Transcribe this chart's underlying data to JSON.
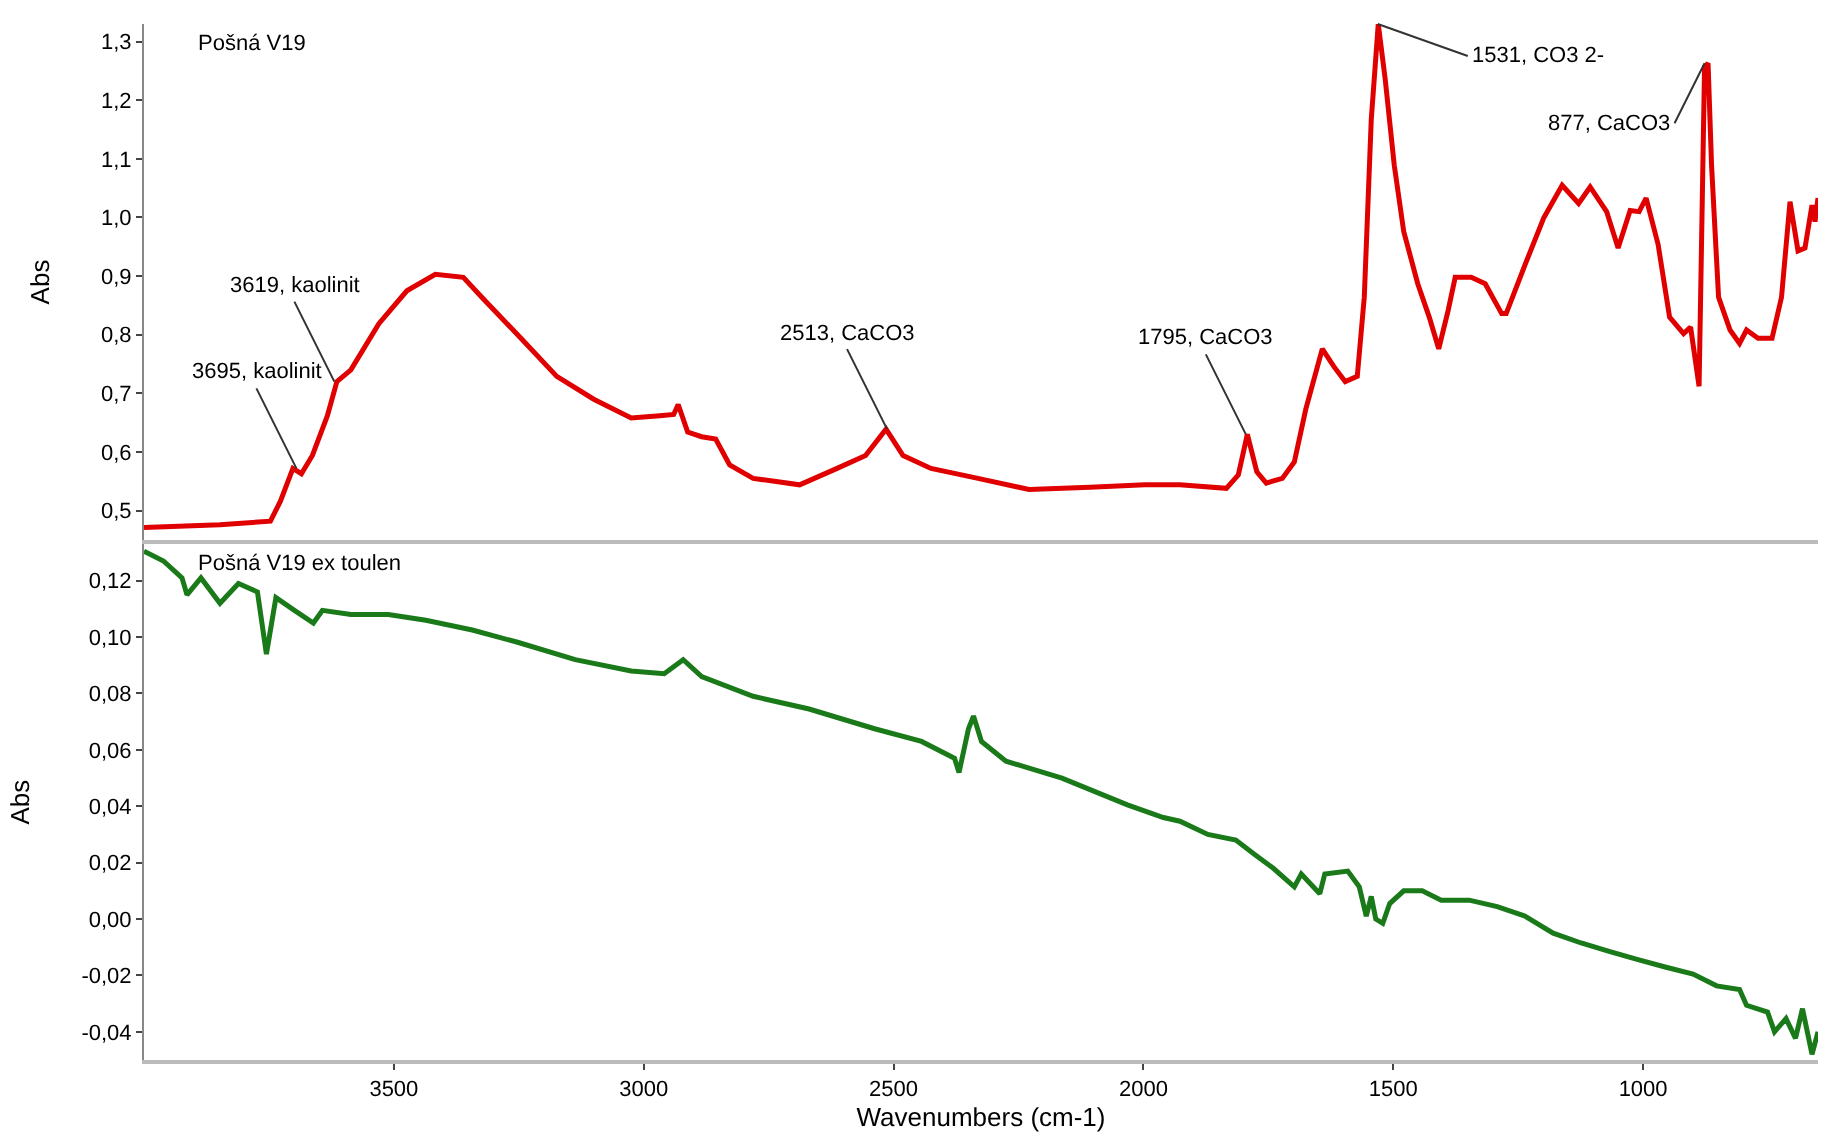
{
  "chart_data": [
    {
      "type": "line",
      "title": "Pošná V19",
      "ylabel": "Abs",
      "xlim": [
        4000,
        650
      ],
      "xticks": [
        3500,
        3000,
        2500,
        2000,
        1500,
        1000
      ],
      "tick_labels": "y",
      "ylim": [
        0.45,
        1.33
      ],
      "yticks": [
        {
          "value": 0.5,
          "label": "0,5"
        },
        {
          "value": 0.6,
          "label": "0,6"
        },
        {
          "value": 0.7,
          "label": "0,7"
        },
        {
          "value": 0.8,
          "label": "0,8"
        },
        {
          "value": 0.9,
          "label": "0,9"
        },
        {
          "value": 1.0,
          "label": "1,0"
        },
        {
          "value": 1.1,
          "label": "1,1"
        },
        {
          "value": 1.2,
          "label": "1,2"
        },
        {
          "value": 1.3,
          "label": "1,3"
        }
      ],
      "series": [
        {
          "color": "#e00000",
          "x": [
            4000,
            3848,
            3747,
            3727,
            3702,
            3685,
            3663,
            3633,
            3614,
            3586,
            3530,
            3474,
            3417,
            3361,
            3324,
            3249,
            3174,
            3100,
            3025,
            2968,
            2940,
            2931,
            2912,
            2884,
            2856,
            2828,
            2781,
            2688,
            2613,
            2556,
            2515,
            2481,
            2425,
            2331,
            2229,
            2107,
            1997,
            1927,
            1834,
            1810,
            1792,
            1773,
            1754,
            1722,
            1698,
            1675,
            1642,
            1619,
            1596,
            1572,
            1558,
            1544,
            1530,
            1516,
            1498,
            1479,
            1451,
            1428,
            1409,
            1390,
            1376,
            1344,
            1316,
            1283,
            1274,
            1236,
            1199,
            1162,
            1129,
            1106,
            1073,
            1050,
            1026,
            1008,
            994,
            970,
            947,
            919,
            905,
            888,
            877,
            870,
            863,
            849,
            826,
            807,
            793,
            770,
            742,
            723,
            706,
            690,
            676,
            662,
            656,
            650
          ],
          "values": [
            0.471,
            0.476,
            0.482,
            0.516,
            0.572,
            0.563,
            0.594,
            0.662,
            0.72,
            0.74,
            0.819,
            0.875,
            0.903,
            0.898,
            0.864,
            0.797,
            0.729,
            0.69,
            0.658,
            0.662,
            0.664,
            0.681,
            0.634,
            0.626,
            0.622,
            0.578,
            0.555,
            0.544,
            0.572,
            0.594,
            0.639,
            0.594,
            0.572,
            0.555,
            0.536,
            0.54,
            0.544,
            0.544,
            0.538,
            0.561,
            0.63,
            0.566,
            0.547,
            0.555,
            0.583,
            0.673,
            0.776,
            0.746,
            0.72,
            0.729,
            0.864,
            1.167,
            1.33,
            1.235,
            1.089,
            0.976,
            0.887,
            0.83,
            0.776,
            0.842,
            0.898,
            0.898,
            0.887,
            0.836,
            0.836,
            0.92,
            0.999,
            1.055,
            1.024,
            1.052,
            1.01,
            0.948,
            1.012,
            1.01,
            1.033,
            0.954,
            0.83,
            0.802,
            0.813,
            0.712,
            1.257,
            1.263,
            1.089,
            0.864,
            0.808,
            0.785,
            0.808,
            0.794,
            0.794,
            0.864,
            1.027,
            0.943,
            0.948,
            1.021,
            0.993,
            1.033
          ]
        }
      ],
      "annotations": [
        {
          "text": "3695, kaolinit",
          "x": 3695,
          "y": 0.572
        },
        {
          "text": "3619, kaolinit",
          "x": 3619,
          "y": 0.72
        },
        {
          "text": "2513, CaCO3",
          "x": 2513,
          "y": 0.639
        },
        {
          "text": "1795, CaCO3",
          "x": 1795,
          "y": 0.63
        },
        {
          "text": "1531, CO3 2-",
          "x": 1531,
          "y": 1.33
        },
        {
          "text": "877, CaCO3",
          "x": 877,
          "y": 1.263
        }
      ]
    },
    {
      "type": "line",
      "title": "Pošná V19 ex toulen",
      "xlabel": "Wavenumbers (cm-1)",
      "ylabel": "Abs",
      "xlim": [
        4000,
        650
      ],
      "xticks": [
        3500,
        3000,
        2500,
        2000,
        1500,
        1000
      ],
      "ylim": [
        -0.05,
        0.133
      ],
      "yticks": [
        {
          "value": -0.04,
          "label": "-0,04"
        },
        {
          "value": -0.02,
          "label": "-0,02"
        },
        {
          "value": 0,
          "label": "0,00"
        },
        {
          "value": 0.02,
          "label": "0,02"
        },
        {
          "value": 0.04,
          "label": "0,04"
        },
        {
          "value": 0.06,
          "label": "0,06"
        },
        {
          "value": 0.08,
          "label": "0,08"
        },
        {
          "value": 0.1,
          "label": "0,10"
        },
        {
          "value": 0.12,
          "label": "0,12"
        }
      ],
      "series": [
        {
          "color": "#1a7a1a",
          "x": [
            4000,
            3961,
            3924,
            3914,
            3886,
            3848,
            3811,
            3773,
            3755,
            3736,
            3699,
            3661,
            3643,
            3586,
            3511,
            3436,
            3343,
            3249,
            3137,
            3025,
            2959,
            2921,
            2884,
            2781,
            2669,
            2538,
            2444,
            2378,
            2369,
            2350,
            2340,
            2324,
            2275,
            2163,
            2032,
            1960,
            1927,
            1871,
            1815,
            1778,
            1740,
            1698,
            1684,
            1647,
            1637,
            1591,
            1568,
            1554,
            1544,
            1535,
            1521,
            1507,
            1479,
            1442,
            1404,
            1348,
            1292,
            1236,
            1180,
            1124,
            1068,
            1012,
            956,
            900,
            853,
            807,
            793,
            751,
            737,
            714,
            695,
            681,
            662,
            650
          ],
          "values": [
            0.1305,
            0.127,
            0.121,
            0.115,
            0.121,
            0.112,
            0.119,
            0.116,
            0.094,
            0.114,
            0.1095,
            0.105,
            0.1095,
            0.108,
            0.108,
            0.106,
            0.1025,
            0.098,
            0.092,
            0.088,
            0.087,
            0.092,
            0.086,
            0.079,
            0.0745,
            0.0675,
            0.063,
            0.057,
            0.052,
            0.0675,
            0.072,
            0.063,
            0.056,
            0.05,
            0.0405,
            0.036,
            0.0347,
            0.03,
            0.028,
            0.023,
            0.018,
            0.0114,
            0.016,
            0.009,
            0.016,
            0.017,
            0.0114,
            0.001,
            0.008,
            0.0,
            -0.0015,
            0.0055,
            0.01,
            0.01,
            0.0067,
            0.0067,
            0.0044,
            0.001,
            -0.005,
            -0.0085,
            -0.0115,
            -0.0143,
            -0.017,
            -0.0195,
            -0.0237,
            -0.025,
            -0.0306,
            -0.033,
            -0.04,
            -0.0353,
            -0.0423,
            -0.0318,
            -0.048,
            -0.04
          ]
        }
      ]
    }
  ]
}
